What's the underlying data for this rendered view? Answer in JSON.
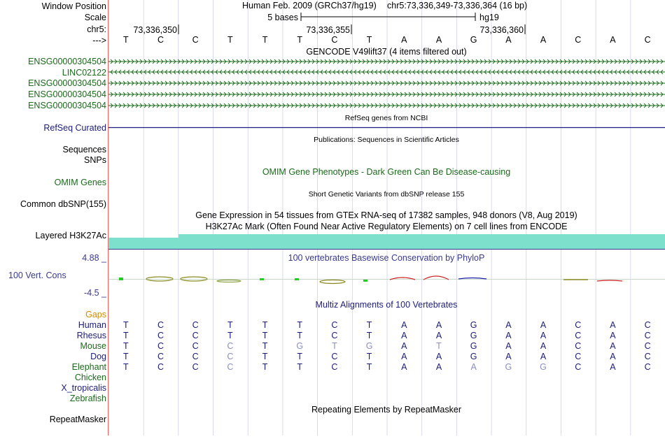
{
  "browser": {
    "assembly_title": "Human Feb. 2009 (GRCh37/hg19)",
    "position": "chr5:73,336,349-73,336,364 (16 bp)",
    "scale_text": "5 bases",
    "assembly_short": "hg19",
    "chrom_label": "chr5:",
    "coord_ticks": [
      "73,336,350",
      "73,336,355",
      "73,336,360"
    ],
    "sequence": [
      "T",
      "C",
      "C",
      "T",
      "T",
      "T",
      "C",
      "T",
      "A",
      "A",
      "G",
      "A",
      "A",
      "C",
      "A",
      "C"
    ]
  },
  "labels": {
    "window_position": "Window Position",
    "scale": "Scale",
    "chrom": "chr5:",
    "strand_arrow": "--->",
    "gencode_genes": [
      "ENSG00000304504",
      "LINC02122",
      "ENSG00000304504",
      "ENSG00000304504",
      "ENSG00000304504"
    ],
    "refseq": "RefSeq Curated",
    "sequences": "Sequences",
    "snps": "SNPs",
    "omim": "OMIM Genes",
    "dbsnp": "Common dbSNP(155)",
    "h3k27ac": "Layered H3K27Ac",
    "phylop_max": "4.88 _",
    "vert_cons": "100 Vert. Cons",
    "phylop_min": "-4.5 _",
    "gaps": "Gaps",
    "species": [
      "Human",
      "Rhesus",
      "Mouse",
      "Dog",
      "Elephant",
      "Chicken",
      "X_tropicalis",
      "Zebrafish"
    ],
    "repeatmasker": "RepeatMasker"
  },
  "tracks": {
    "gencode_title": "GENCODE V49lift37 (4 items filtered out)",
    "refseq_title": "RefSeq genes from NCBI",
    "pubs_title": "Publications: Sequences in Scientific Articles",
    "omim_title": "OMIM Gene Phenotypes - Dark Green Can Be Disease-causing",
    "dbsnp_title": "Short Genetic Variants from dbSNP release 155",
    "gtex_title": "Gene Expression in 54 tissues from GTEx RNA-seq of 17382 samples, 948 donors (V8, Aug 2019)",
    "h3k27ac_title": "H3K27Ac Mark (Often Found Near Active Regulatory Elements) on 7 cell lines from ENCODE",
    "phylop_title": "100 vertebrates Basewise Conservation by PhyloP",
    "multiz_title": "Multiz Alignments of 100 Vertebrates",
    "repeatmasker_title": "Repeating Elements by RepeatMasker"
  },
  "alignment": [
    {
      "species": "Human",
      "bases": [
        "T",
        "C",
        "C",
        "T",
        "T",
        "T",
        "C",
        "T",
        "A",
        "A",
        "G",
        "A",
        "A",
        "C",
        "A",
        "C"
      ],
      "mismatch": []
    },
    {
      "species": "Rhesus",
      "bases": [
        "T",
        "C",
        "C",
        "T",
        "T",
        "T",
        "C",
        "T",
        "A",
        "A",
        "G",
        "A",
        "A",
        "C",
        "A",
        "C"
      ],
      "mismatch": []
    },
    {
      "species": "Mouse",
      "bases": [
        "T",
        "C",
        "C",
        "C",
        "T",
        "G",
        "T",
        "G",
        "A",
        "T",
        "G",
        "A",
        "A",
        "C",
        "A",
        "C"
      ],
      "mismatch": [
        3,
        5,
        6,
        7,
        9
      ]
    },
    {
      "species": "Dog",
      "bases": [
        "T",
        "C",
        "C",
        "C",
        "T",
        "T",
        "C",
        "T",
        "A",
        "A",
        "G",
        "A",
        "A",
        "C",
        "A",
        "C"
      ],
      "mismatch": [
        3
      ]
    },
    {
      "species": "Elephant",
      "bases": [
        "T",
        "C",
        "C",
        "C",
        "T",
        "T",
        "C",
        "T",
        "A",
        "A",
        "A",
        "G",
        "G",
        "C",
        "A",
        "C"
      ],
      "mismatch": [
        3,
        10,
        11,
        12
      ]
    }
  ],
  "colors": {
    "green_label": "#1a6a1a",
    "navy": "#1c1c7c",
    "gaps_orange": "#d88a00",
    "h3k27ac_fill": "#7de0cc",
    "mismatch_gray": "#8a8fc0",
    "grid": "#d0d0e8"
  }
}
